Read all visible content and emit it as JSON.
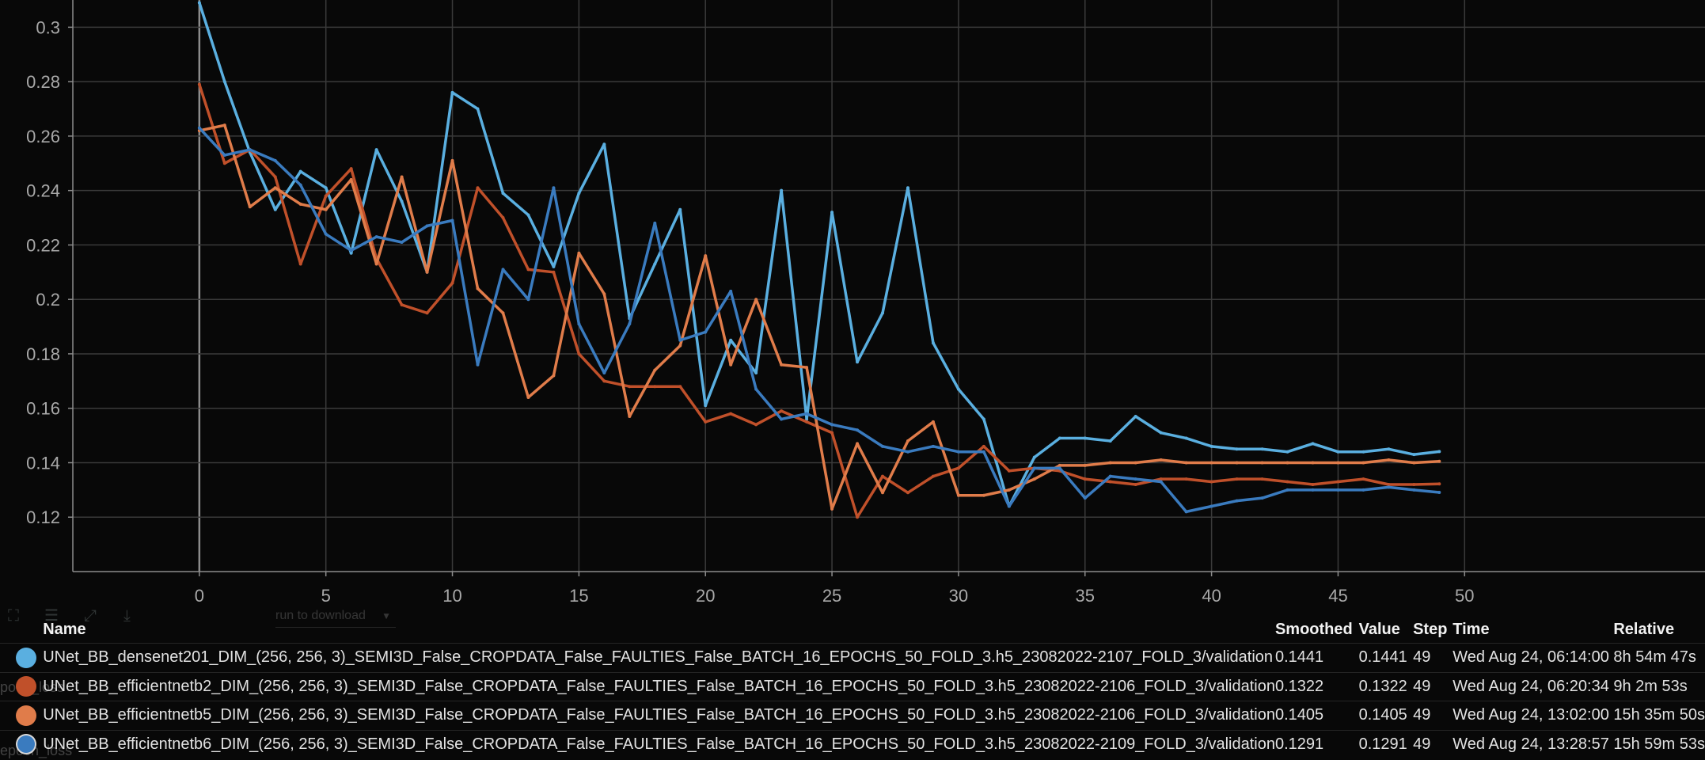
{
  "chart_data": {
    "type": "line",
    "title": "",
    "xlabel": "",
    "ylabel": "",
    "xlim": [
      -5,
      59.5
    ],
    "ylim": [
      0.1,
      0.31
    ],
    "x_ticks": [
      0,
      5,
      10,
      15,
      20,
      25,
      30,
      35,
      40,
      45,
      50
    ],
    "y_ticks": [
      0.12,
      0.14,
      0.16,
      0.18,
      0.2,
      0.22,
      0.24,
      0.26,
      0.28,
      0.3
    ],
    "grid": true,
    "legend": "none",
    "x": [
      0,
      1,
      2,
      3,
      4,
      5,
      6,
      7,
      8,
      9,
      10,
      11,
      12,
      13,
      14,
      15,
      16,
      17,
      18,
      19,
      20,
      21,
      22,
      23,
      24,
      25,
      26,
      27,
      28,
      29,
      30,
      31,
      32,
      33,
      34,
      35,
      36,
      37,
      38,
      39,
      40,
      41,
      42,
      43,
      44,
      45,
      46,
      47,
      48,
      49
    ],
    "series": [
      {
        "color": "#5aafe0",
        "values": [
          0.309,
          0.28,
          0.254,
          0.233,
          0.247,
          0.241,
          0.217,
          0.255,
          0.236,
          0.21,
          0.276,
          0.27,
          0.239,
          0.231,
          0.212,
          0.239,
          0.257,
          0.193,
          0.213,
          0.233,
          0.161,
          0.185,
          0.173,
          0.24,
          0.156,
          0.232,
          0.177,
          0.195,
          0.241,
          0.184,
          0.167,
          0.156,
          0.124,
          0.142,
          0.149,
          0.149,
          0.148,
          0.157,
          0.151,
          0.149,
          0.146,
          0.145,
          0.145,
          0.144,
          0.147,
          0.144,
          0.144,
          0.145,
          0.143,
          0.1441
        ]
      },
      {
        "color": "#c0502a",
        "values": [
          0.279,
          0.25,
          0.255,
          0.245,
          0.213,
          0.238,
          0.248,
          0.215,
          0.198,
          0.195,
          0.206,
          0.241,
          0.23,
          0.211,
          0.21,
          0.18,
          0.17,
          0.168,
          0.168,
          0.168,
          0.155,
          0.158,
          0.154,
          0.159,
          0.155,
          0.151,
          0.12,
          0.135,
          0.129,
          0.135,
          0.138,
          0.146,
          0.137,
          0.138,
          0.137,
          0.134,
          0.133,
          0.132,
          0.134,
          0.134,
          0.133,
          0.134,
          0.134,
          0.133,
          0.132,
          0.133,
          0.134,
          0.132,
          0.132,
          0.1322
        ]
      },
      {
        "color": "#e07c4a",
        "values": [
          0.262,
          0.264,
          0.234,
          0.241,
          0.235,
          0.233,
          0.244,
          0.213,
          0.245,
          0.21,
          0.251,
          0.204,
          0.195,
          0.164,
          0.172,
          0.217,
          0.202,
          0.157,
          0.174,
          0.183,
          0.216,
          0.176,
          0.2,
          0.176,
          0.175,
          0.123,
          0.147,
          0.129,
          0.148,
          0.155,
          0.128,
          0.128,
          0.13,
          0.134,
          0.139,
          0.139,
          0.14,
          0.14,
          0.141,
          0.14,
          0.14,
          0.14,
          0.14,
          0.14,
          0.14,
          0.14,
          0.14,
          0.141,
          0.14,
          0.1405
        ]
      },
      {
        "color": "#3a7bbf",
        "values": [
          0.263,
          0.253,
          0.255,
          0.251,
          0.242,
          0.224,
          0.218,
          0.223,
          0.221,
          0.227,
          0.229,
          0.176,
          0.211,
          0.2,
          0.241,
          0.191,
          0.173,
          0.191,
          0.228,
          0.185,
          0.188,
          0.203,
          0.167,
          0.156,
          0.158,
          0.154,
          0.152,
          0.146,
          0.144,
          0.146,
          0.144,
          0.144,
          0.124,
          0.138,
          0.138,
          0.127,
          0.135,
          0.134,
          0.133,
          0.122,
          0.124,
          0.126,
          0.127,
          0.13,
          0.13,
          0.13,
          0.13,
          0.131,
          0.13,
          0.1291
        ]
      }
    ]
  },
  "toolbar": {
    "run_download_label": "run to download",
    "run_download_arrow": "▼",
    "ghost_label_1": "poch_loss",
    "ghost_label_2": "epoch_loss",
    "icons": [
      "fullscreen-icon",
      "list-icon",
      "fit-domain-icon",
      "download-icon"
    ]
  },
  "table": {
    "headers": {
      "name": "Name",
      "smoothed": "Smoothed",
      "value": "Value",
      "step": "Step",
      "time": "Time",
      "relative": "Relative"
    },
    "rows": [
      {
        "color": "#5aafe0",
        "name": "UNet_BB_densenet201_DIM_(256, 256, 3)_SEMI3D_False_CROPDATA_False_FAULTIES_False_BATCH_16_EPOCHS_50_FOLD_3.h5_23082022-2107_FOLD_3/validation",
        "smoothed": "0.1441",
        "value": "0.1441",
        "step": "49",
        "time": "Wed Aug 24, 06:14:00",
        "relative": "8h 54m 47s"
      },
      {
        "color": "#c0502a",
        "name": "UNet_BB_efficientnetb2_DIM_(256, 256, 3)_SEMI3D_False_CROPDATA_False_FAULTIES_False_BATCH_16_EPOCHS_50_FOLD_3.h5_23082022-2106_FOLD_3/validation",
        "smoothed": "0.1322",
        "value": "0.1322",
        "step": "49",
        "time": "Wed Aug 24, 06:20:34",
        "relative": "9h 2m 53s"
      },
      {
        "color": "#e07c4a",
        "name": "UNet_BB_efficientnetb5_DIM_(256, 256, 3)_SEMI3D_False_CROPDATA_False_FAULTIES_False_BATCH_16_EPOCHS_50_FOLD_3.h5_23082022-2106_FOLD_3/validation",
        "smoothed": "0.1405",
        "value": "0.1405",
        "step": "49",
        "time": "Wed Aug 24, 13:02:00",
        "relative": "15h 35m 50s"
      },
      {
        "color": "#3a7bbf",
        "name": "UNet_BB_efficientnetb6_DIM_(256, 256, 3)_SEMI3D_False_CROPDATA_False_FAULTIES_False_BATCH_16_EPOCHS_50_FOLD_3.h5_23082022-2109_FOLD_3/validation",
        "smoothed": "0.1291",
        "value": "0.1291",
        "step": "49",
        "time": "Wed Aug 24, 13:28:57",
        "relative": "15h 59m 53s"
      }
    ]
  }
}
